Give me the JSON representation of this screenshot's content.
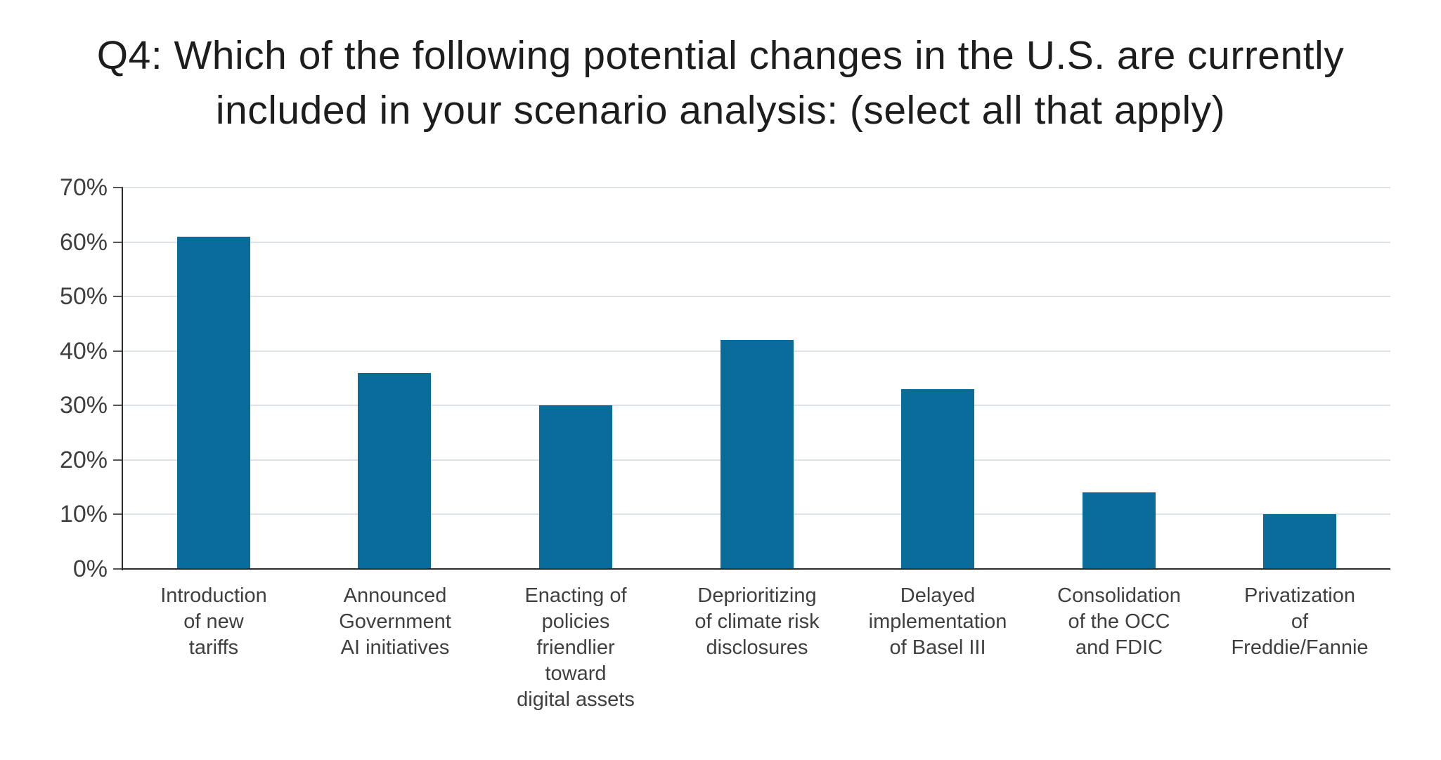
{
  "title": "Q4: Which of the following potential changes in the U.S. are currently\nincluded in your scenario analysis: (select all that apply)",
  "chart_data": {
    "type": "bar",
    "title": "Q4: Which of the following potential changes in the U.S. are currently included in your scenario analysis: (select all that apply)",
    "categories": [
      "Introduction\nof new\ntariffs",
      "Announced\nGovernment\nAI initiatives",
      "Enacting of\npolicies\nfriendlier\ntoward\ndigital assets",
      "Deprioritizing\nof climate risk\ndisclosures",
      "Delayed\nimplementation\nof Basel III",
      "Consolidation\nof the OCC\nand FDIC",
      "Privatization\nof\nFreddie/Fannie"
    ],
    "values": [
      61,
      36,
      30,
      42,
      33,
      14,
      10
    ],
    "unit": "%",
    "xlabel": "",
    "ylabel": "",
    "ylim": [
      0,
      70
    ],
    "ytick_step": 10,
    "ytick_labels": [
      "0%",
      "10%",
      "20%",
      "30%",
      "40%",
      "50%",
      "60%",
      "70%"
    ],
    "grid": true,
    "legend": false,
    "colors": {
      "bar": "#0a6c9b",
      "gridline": "#dde2e6",
      "axis": "#2b2b2b",
      "tick": "#565656",
      "axis_text": "#3f3f3f",
      "title_text": "#1d1d1d"
    }
  }
}
